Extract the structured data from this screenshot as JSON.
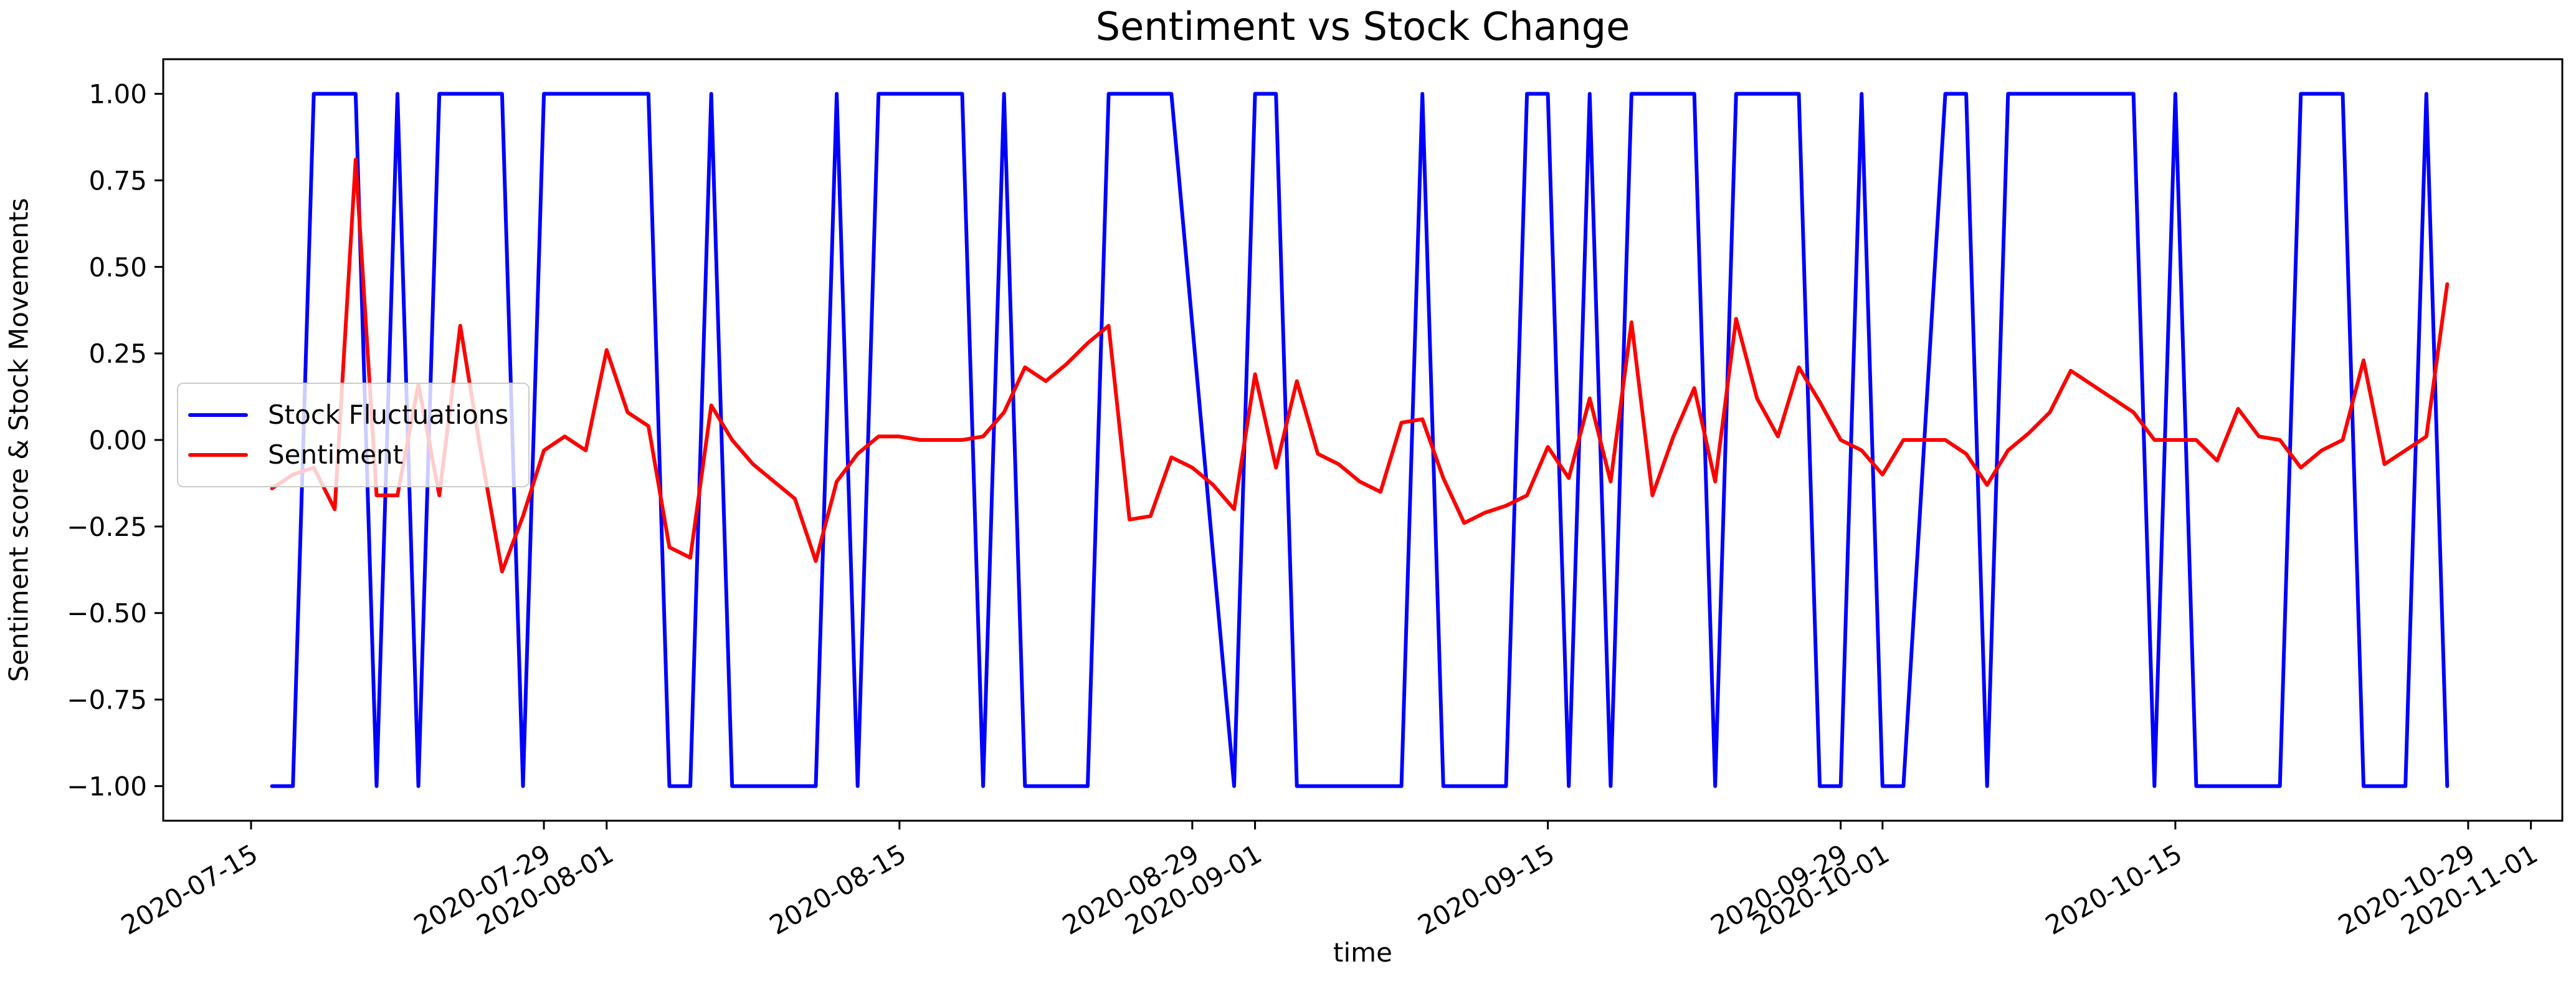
{
  "figure": {
    "title": "Sentiment vs Stock Change",
    "xlabel": "time",
    "ylabel": "Sentiment score & Stock Movements"
  },
  "legend": {
    "items": [
      {
        "label": "Stock Fluctuations",
        "color": "#0000ff"
      },
      {
        "label": "Sentiment",
        "color": "#ff0000"
      }
    ]
  },
  "chart_data": {
    "type": "line",
    "title": "Sentiment vs Stock Change",
    "xlabel": "time",
    "ylabel": "Sentiment score & Stock Movements",
    "grid": false,
    "legend_position": "center left",
    "x_axis": {
      "unit": "days since 2020-07-16",
      "start_date": "2020-07-16",
      "end_date": "2020-10-28",
      "domain": [
        -5.2,
        109.5
      ],
      "ticks": [
        {
          "day": -1,
          "label": "2020-07-15"
        },
        {
          "day": 13,
          "label": "2020-07-29"
        },
        {
          "day": 16,
          "label": "2020-08-01"
        },
        {
          "day": 30,
          "label": "2020-08-15"
        },
        {
          "day": 44,
          "label": "2020-08-29"
        },
        {
          "day": 47,
          "label": "2020-09-01"
        },
        {
          "day": 61,
          "label": "2020-09-15"
        },
        {
          "day": 75,
          "label": "2020-09-29"
        },
        {
          "day": 77,
          "label": "2020-10-01"
        },
        {
          "day": 91,
          "label": "2020-10-15"
        },
        {
          "day": 105,
          "label": "2020-10-29"
        },
        {
          "day": 108,
          "label": "2020-11-01"
        }
      ]
    },
    "y_axis": {
      "domain": [
        -1.1,
        1.1
      ],
      "ticks": [
        {
          "value": 1.0,
          "label": "1.00"
        },
        {
          "value": 0.75,
          "label": "0.75"
        },
        {
          "value": 0.5,
          "label": "0.50"
        },
        {
          "value": 0.25,
          "label": "0.25"
        },
        {
          "value": 0.0,
          "label": "0.00"
        },
        {
          "value": -0.25,
          "label": "−0.25"
        },
        {
          "value": -0.5,
          "label": "−0.50"
        },
        {
          "value": -0.75,
          "label": "−0.75"
        },
        {
          "value": -1.0,
          "label": "−1.00"
        }
      ]
    },
    "series": [
      {
        "name": "Stock Fluctuations",
        "color": "#0000ff",
        "points": [
          [
            0,
            -1
          ],
          [
            1,
            -1
          ],
          [
            2,
            1
          ],
          [
            4,
            1
          ],
          [
            5,
            -1
          ],
          [
            6,
            1
          ],
          [
            7,
            -1
          ],
          [
            8,
            1
          ],
          [
            11,
            1
          ],
          [
            12,
            -1
          ],
          [
            13,
            1
          ],
          [
            18,
            1
          ],
          [
            19,
            -1
          ],
          [
            20,
            -1
          ],
          [
            21,
            1
          ],
          [
            22,
            -1
          ],
          [
            26,
            -1
          ],
          [
            27,
            1
          ],
          [
            28,
            -1
          ],
          [
            29,
            1
          ],
          [
            33,
            1
          ],
          [
            34,
            -1
          ],
          [
            35,
            1
          ],
          [
            36,
            -1
          ],
          [
            39,
            -1
          ],
          [
            40,
            1
          ],
          [
            43,
            1
          ],
          [
            46,
            -1
          ],
          [
            47,
            1
          ],
          [
            48,
            1
          ],
          [
            49,
            -1
          ],
          [
            54,
            -1
          ],
          [
            55,
            1
          ],
          [
            56,
            -1
          ],
          [
            59,
            -1
          ],
          [
            60,
            1
          ],
          [
            61,
            1
          ],
          [
            62,
            -1
          ],
          [
            63,
            1
          ],
          [
            64,
            -1
          ],
          [
            65,
            1
          ],
          [
            68,
            1
          ],
          [
            69,
            -1
          ],
          [
            70,
            1
          ],
          [
            73,
            1
          ],
          [
            74,
            -1
          ],
          [
            75,
            -1
          ],
          [
            76,
            1
          ],
          [
            77,
            -1
          ],
          [
            78,
            -1
          ],
          [
            80,
            1
          ],
          [
            81,
            1
          ],
          [
            82,
            -1
          ],
          [
            83,
            1
          ],
          [
            89,
            1
          ],
          [
            90,
            -1
          ],
          [
            91,
            1
          ],
          [
            92,
            -1
          ],
          [
            96,
            -1
          ],
          [
            97,
            1
          ],
          [
            99,
            1
          ],
          [
            100,
            -1
          ],
          [
            102,
            -1
          ],
          [
            103,
            1
          ],
          [
            104,
            -1
          ]
        ]
      },
      {
        "name": "Sentiment",
        "color": "#ff0000",
        "points": [
          [
            0,
            -0.14
          ],
          [
            1,
            -0.1
          ],
          [
            2,
            -0.08
          ],
          [
            3,
            -0.2
          ],
          [
            4,
            0.81
          ],
          [
            5,
            -0.16
          ],
          [
            6,
            -0.16
          ],
          [
            7,
            0.16
          ],
          [
            8,
            -0.16
          ],
          [
            9,
            0.33
          ],
          [
            10,
            -0.04
          ],
          [
            11,
            -0.38
          ],
          [
            12,
            -0.22
          ],
          [
            13,
            -0.03
          ],
          [
            14,
            0.01
          ],
          [
            15,
            -0.03
          ],
          [
            16,
            0.26
          ],
          [
            17,
            0.08
          ],
          [
            18,
            0.04
          ],
          [
            19,
            -0.31
          ],
          [
            20,
            -0.34
          ],
          [
            21,
            0.1
          ],
          [
            22,
            0.0
          ],
          [
            23,
            -0.07
          ],
          [
            24,
            -0.12
          ],
          [
            25,
            -0.17
          ],
          [
            26,
            -0.35
          ],
          [
            27,
            -0.12
          ],
          [
            28,
            -0.04
          ],
          [
            29,
            0.01
          ],
          [
            30,
            0.01
          ],
          [
            31,
            0.0
          ],
          [
            32,
            0.0
          ],
          [
            33,
            0.0
          ],
          [
            34,
            0.01
          ],
          [
            35,
            0.08
          ],
          [
            36,
            0.21
          ],
          [
            37,
            0.17
          ],
          [
            38,
            0.22
          ],
          [
            39,
            0.28
          ],
          [
            40,
            0.33
          ],
          [
            41,
            -0.23
          ],
          [
            42,
            -0.22
          ],
          [
            43,
            -0.05
          ],
          [
            44,
            -0.08
          ],
          [
            45,
            -0.13
          ],
          [
            46,
            -0.2
          ],
          [
            47,
            0.19
          ],
          [
            48,
            -0.08
          ],
          [
            49,
            0.17
          ],
          [
            50,
            -0.04
          ],
          [
            51,
            -0.07
          ],
          [
            52,
            -0.12
          ],
          [
            53,
            -0.15
          ],
          [
            54,
            0.05
          ],
          [
            55,
            0.06
          ],
          [
            56,
            -0.11
          ],
          [
            57,
            -0.24
          ],
          [
            58,
            -0.21
          ],
          [
            59,
            -0.19
          ],
          [
            60,
            -0.16
          ],
          [
            61,
            -0.02
          ],
          [
            62,
            -0.11
          ],
          [
            63,
            0.12
          ],
          [
            64,
            -0.12
          ],
          [
            65,
            0.34
          ],
          [
            66,
            -0.16
          ],
          [
            67,
            0.01
          ],
          [
            68,
            0.15
          ],
          [
            69,
            -0.12
          ],
          [
            70,
            0.35
          ],
          [
            71,
            0.12
          ],
          [
            72,
            0.01
          ],
          [
            73,
            0.21
          ],
          [
            74,
            0.11
          ],
          [
            75,
            0.0
          ],
          [
            76,
            -0.03
          ],
          [
            77,
            -0.1
          ],
          [
            78,
            0.0
          ],
          [
            79,
            0.0
          ],
          [
            80,
            0.0
          ],
          [
            81,
            -0.04
          ],
          [
            82,
            -0.13
          ],
          [
            83,
            -0.03
          ],
          [
            84,
            0.02
          ],
          [
            85,
            0.08
          ],
          [
            86,
            0.2
          ],
          [
            87,
            0.16
          ],
          [
            88,
            0.12
          ],
          [
            89,
            0.08
          ],
          [
            90,
            0.0
          ],
          [
            91,
            0.0
          ],
          [
            92,
            0.0
          ],
          [
            93,
            -0.06
          ],
          [
            94,
            0.09
          ],
          [
            95,
            0.01
          ],
          [
            96,
            0.0
          ],
          [
            97,
            -0.08
          ],
          [
            98,
            -0.03
          ],
          [
            99,
            0.0
          ],
          [
            100,
            0.23
          ],
          [
            101,
            -0.07
          ],
          [
            102,
            -0.03
          ],
          [
            103,
            0.01
          ],
          [
            104,
            0.45
          ]
        ]
      }
    ]
  }
}
